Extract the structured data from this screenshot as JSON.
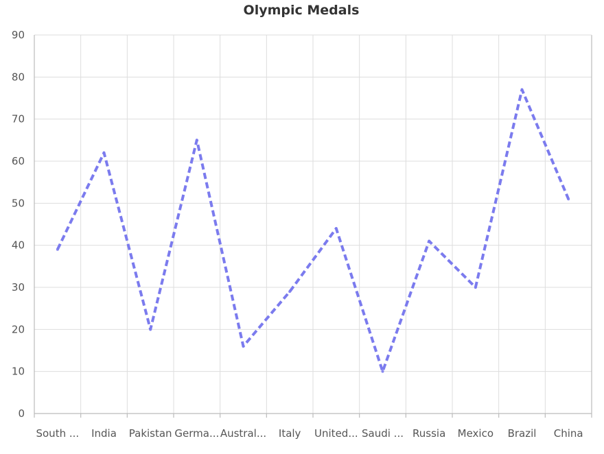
{
  "chart_data": {
    "type": "line",
    "title": "Olympic Medals",
    "categories": [
      "South ...",
      "India",
      "Pakistan",
      "Germa...",
      "Austral...",
      "Italy",
      "United...",
      "Saudi ...",
      "Russia",
      "Mexico",
      "Brazil",
      "China"
    ],
    "series": [
      {
        "values": [
          39,
          62,
          20,
          65,
          16,
          29,
          44,
          10,
          41,
          30,
          77,
          51
        ]
      }
    ],
    "ylim": [
      0,
      90
    ],
    "yticks": [
      0,
      10,
      20,
      30,
      40,
      50,
      60,
      70,
      80,
      90
    ],
    "grid": true,
    "line_style": "dashed",
    "colors": {
      "series": "#7b7bee",
      "grid": "#dddddd",
      "axis": "#bbbbbb"
    }
  }
}
